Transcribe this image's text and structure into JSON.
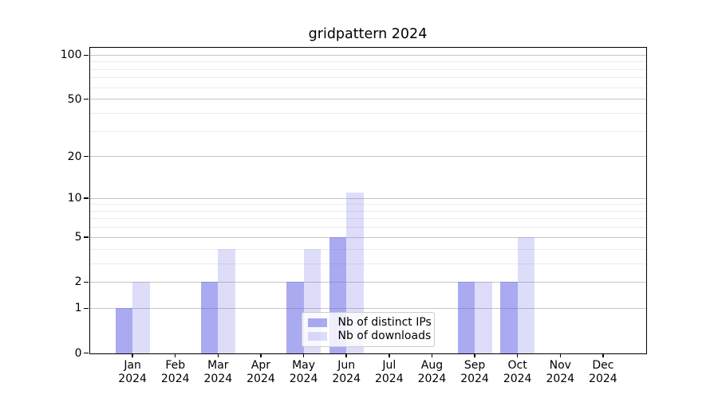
{
  "figure": {
    "background": "#ffffff"
  },
  "chart_data": {
    "type": "bar",
    "title": "gridpattern 2024",
    "categories": [
      "Jan",
      "Feb",
      "Mar",
      "Apr",
      "May",
      "Jun",
      "Jul",
      "Aug",
      "Sep",
      "Oct",
      "Nov",
      "Dec"
    ],
    "x_tick_year": "2024",
    "series": [
      {
        "name": "Nb of distinct IPs",
        "values": [
          1,
          0,
          2,
          0,
          2,
          5,
          0,
          0,
          2,
          2,
          0,
          0
        ],
        "color": "rgba(100,100,230,0.55)",
        "color_on_white_hex": "#a9a9f1"
      },
      {
        "name": "Nb of downloads",
        "values": [
          2,
          0,
          4,
          0,
          4,
          11,
          0,
          0,
          2,
          5,
          0,
          0
        ],
        "color": "rgba(100,100,230,0.22)",
        "color_on_white_hex": "#dcdcf9"
      }
    ],
    "y_axis": {
      "scale": "log10(1+value)",
      "tick_values": [
        0,
        1,
        2,
        5,
        10,
        20,
        50,
        100
      ],
      "tick_labels": [
        "0",
        "1",
        "2",
        "5",
        "10",
        "20",
        "50",
        "100"
      ],
      "minor_gridline_values": [
        3,
        4,
        6,
        7,
        8,
        9,
        30,
        40,
        60,
        70,
        80,
        90
      ],
      "top_value": 113
    },
    "grid": {
      "major_color": "#c6c6c6",
      "minor_color": "#ebebeb"
    },
    "legend": {
      "position": "lower center",
      "entries": [
        "Nb of distinct IPs",
        "Nb of downloads"
      ]
    }
  }
}
